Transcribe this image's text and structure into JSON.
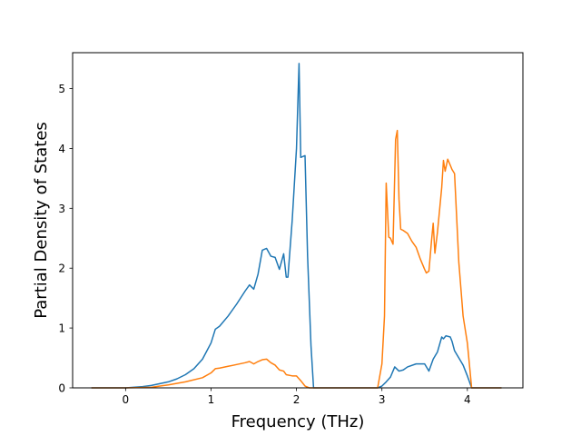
{
  "chart_data": {
    "type": "line",
    "title": "",
    "xlabel": "Frequency (THz)",
    "ylabel": "Partial Density of States",
    "xlim": [
      -0.62,
      4.65
    ],
    "ylim": [
      0,
      5.6
    ],
    "xticks": [
      "0",
      "1",
      "2",
      "3",
      "4"
    ],
    "yticks": [
      "0",
      "1",
      "2",
      "3",
      "4",
      "5"
    ],
    "grid": false,
    "legend": "none",
    "series": [
      {
        "color": "#1f77b4",
        "x": [
          -0.4,
          0.0,
          0.2,
          0.3,
          0.4,
          0.5,
          0.6,
          0.7,
          0.8,
          0.9,
          1.0,
          1.05,
          1.1,
          1.2,
          1.3,
          1.4,
          1.45,
          1.5,
          1.55,
          1.6,
          1.65,
          1.7,
          1.75,
          1.8,
          1.85,
          1.88,
          1.9,
          1.95,
          2.0,
          2.03,
          2.05,
          2.1,
          2.13,
          2.17,
          2.2,
          2.4,
          2.8,
          2.95,
          3.0,
          3.05,
          3.1,
          3.15,
          3.2,
          3.25,
          3.3,
          3.4,
          3.5,
          3.55,
          3.6,
          3.65,
          3.7,
          3.72,
          3.75,
          3.8,
          3.82,
          3.85,
          3.9,
          3.95,
          4.0,
          4.05,
          4.4
        ],
        "y": [
          0.0,
          0.0,
          0.02,
          0.04,
          0.07,
          0.1,
          0.15,
          0.22,
          0.32,
          0.48,
          0.75,
          0.98,
          1.03,
          1.2,
          1.4,
          1.62,
          1.72,
          1.65,
          1.9,
          2.3,
          2.33,
          2.2,
          2.18,
          1.98,
          2.24,
          1.85,
          1.85,
          2.8,
          4.0,
          5.42,
          3.85,
          3.88,
          2.2,
          0.7,
          0.0,
          0.0,
          0.0,
          0.0,
          0.03,
          0.1,
          0.18,
          0.35,
          0.28,
          0.3,
          0.35,
          0.4,
          0.4,
          0.28,
          0.48,
          0.6,
          0.85,
          0.82,
          0.87,
          0.85,
          0.78,
          0.62,
          0.5,
          0.38,
          0.2,
          0.0,
          0.0
        ]
      },
      {
        "color": "#ff7f0e",
        "x": [
          -0.4,
          0.0,
          0.3,
          0.5,
          0.7,
          0.9,
          1.0,
          1.05,
          1.1,
          1.2,
          1.3,
          1.4,
          1.45,
          1.5,
          1.55,
          1.6,
          1.65,
          1.7,
          1.75,
          1.8,
          1.85,
          1.88,
          1.95,
          2.0,
          2.05,
          2.1,
          2.15,
          2.4,
          2.8,
          2.95,
          3.0,
          3.03,
          3.05,
          3.08,
          3.1,
          3.13,
          3.16,
          3.18,
          3.2,
          3.22,
          3.25,
          3.3,
          3.35,
          3.4,
          3.45,
          3.5,
          3.52,
          3.55,
          3.58,
          3.6,
          3.62,
          3.65,
          3.7,
          3.72,
          3.74,
          3.77,
          3.8,
          3.82,
          3.85,
          3.9,
          3.95,
          4.0,
          4.05,
          4.4
        ],
        "y": [
          0.0,
          0.0,
          0.01,
          0.05,
          0.1,
          0.17,
          0.25,
          0.32,
          0.33,
          0.36,
          0.39,
          0.42,
          0.44,
          0.4,
          0.44,
          0.47,
          0.48,
          0.42,
          0.38,
          0.3,
          0.28,
          0.22,
          0.2,
          0.2,
          0.12,
          0.03,
          0.0,
          0.0,
          0.0,
          0.0,
          0.4,
          1.2,
          3.42,
          2.52,
          2.5,
          2.4,
          4.15,
          4.3,
          3.15,
          2.65,
          2.63,
          2.58,
          2.45,
          2.35,
          2.15,
          1.98,
          1.92,
          1.95,
          2.45,
          2.75,
          2.25,
          2.6,
          3.35,
          3.8,
          3.62,
          3.82,
          3.72,
          3.65,
          3.58,
          2.1,
          1.2,
          0.75,
          0.0,
          0.0
        ]
      }
    ]
  }
}
